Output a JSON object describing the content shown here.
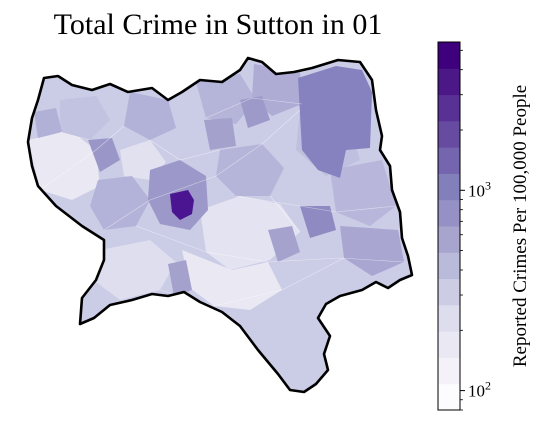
{
  "title": "Total Crime in Sutton in 01",
  "colorbar": {
    "label": "Reported Crimes Per 100,000 People",
    "scale": "log",
    "min": 80,
    "max": 5500,
    "ticks": [
      {
        "value": 100,
        "base": "10",
        "exp": "2"
      },
      {
        "value": 1000,
        "base": "10",
        "exp": "3"
      }
    ],
    "colors": [
      "#fcfbfd",
      "#efedf5",
      "#dadaeb",
      "#bcbddc",
      "#9e9ac8",
      "#807dba",
      "#6a51a3",
      "#54278f",
      "#3f007d"
    ]
  },
  "map": {
    "region": "Sutton",
    "fill_colors": {
      "base": "#cbcce6",
      "light": "#e6e5f2",
      "mid": "#b9b8dc",
      "darker": "#a09dcb",
      "dark_patch": "#8682bf",
      "hotspot": "#4a148c",
      "border": "#000000"
    }
  }
}
